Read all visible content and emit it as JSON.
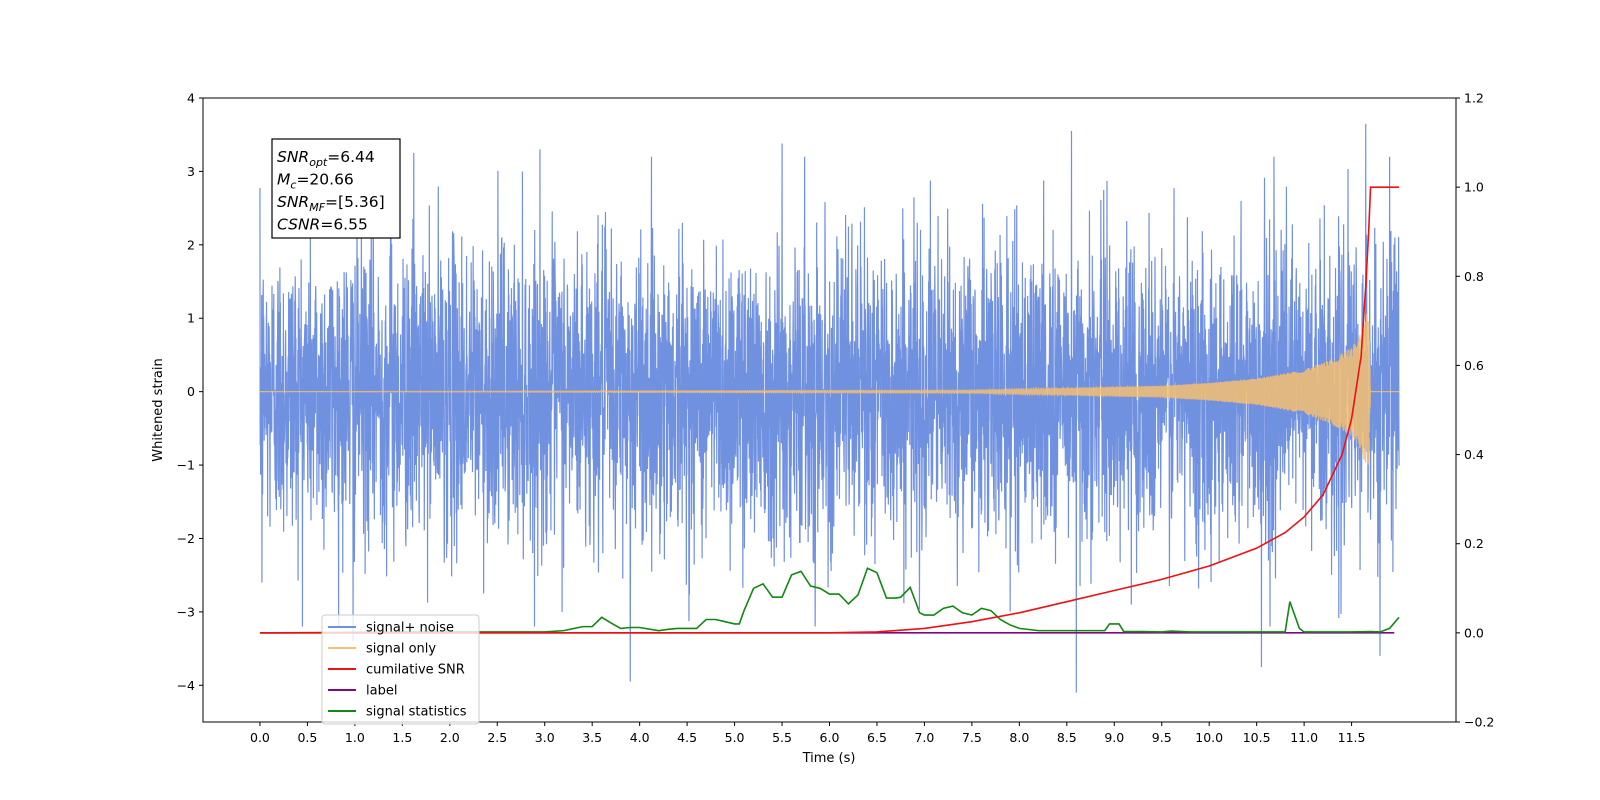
{
  "chart_data": {
    "type": "line",
    "xlabel": "Time (s)",
    "ylabel": "Whitened strain",
    "xlim": [
      -0.6,
      12.6
    ],
    "ylim": [
      -4.5,
      4.0
    ],
    "y2lim": [
      -0.2,
      1.2
    ],
    "x_ticks": [
      0.0,
      0.5,
      1.0,
      1.5,
      2.0,
      2.5,
      3.0,
      3.5,
      4.0,
      4.5,
      5.0,
      5.5,
      6.0,
      6.5,
      7.0,
      7.5,
      8.0,
      8.5,
      9.0,
      9.5,
      10.0,
      10.5,
      11.0,
      11.5
    ],
    "x_tick_labels": [
      "0.0",
      "0.5",
      "1.0",
      "1.5",
      "2.0",
      "2.5",
      "3.0",
      "3.5",
      "4.0",
      "4.5",
      "5.0",
      "5.5",
      "6.0",
      "6.5",
      "7.0",
      "7.5",
      "8.0",
      "8.5",
      "9.0",
      "9.5",
      "10.0",
      "10.5",
      "11.0",
      "11.5"
    ],
    "y_ticks": [
      -4,
      -3,
      -2,
      -1,
      0,
      1,
      2,
      3,
      4
    ],
    "y_tick_labels": [
      "−4",
      "−3",
      "−2",
      "−1",
      "0",
      "1",
      "2",
      "3",
      "4"
    ],
    "y2_ticks": [
      -0.2,
      0.0,
      0.2,
      0.4,
      0.6,
      0.8,
      1.0,
      1.2
    ],
    "y2_tick_labels": [
      "−0.2",
      "0.0",
      "0.2",
      "0.4",
      "0.6",
      "0.8",
      "1.0",
      "1.2"
    ],
    "grid": false,
    "legend_position": "bottom-left",
    "annotation_box": {
      "position": "top-left",
      "lines": [
        {
          "sym": "SNR",
          "sub": "opt",
          "value": "=6.44"
        },
        {
          "sym": "M",
          "sub": "c",
          "value": "=20.66"
        },
        {
          "sym": "SNR",
          "sub": "MF",
          "value": "=[5.36]"
        },
        {
          "sym": "CSNR",
          "sub": "",
          "value": "=6.55"
        }
      ]
    },
    "series": [
      {
        "name": "signal+ noise",
        "color": "#7090e0",
        "axis": "left",
        "description": "whitened noise plus signal, approx. unit-variance, x from 0.0 to 12.0 s",
        "x_range": [
          0.0,
          12.0
        ],
        "std": 1.0,
        "extremes": [
          {
            "x": 0.02,
            "y": 2.87
          },
          {
            "x": 0.02,
            "y": -2.6
          },
          {
            "x": 0.98,
            "y": -3.4
          },
          {
            "x": 1.38,
            "y": 3.0
          },
          {
            "x": 1.62,
            "y": 3.25
          },
          {
            "x": 2.95,
            "y": 3.3
          },
          {
            "x": 3.9,
            "y": -3.95
          },
          {
            "x": 5.5,
            "y": 3.38
          },
          {
            "x": 8.55,
            "y": 3.55
          },
          {
            "x": 8.6,
            "y": -4.1
          },
          {
            "x": 10.55,
            "y": -3.75
          },
          {
            "x": 11.65,
            "y": 3.65
          },
          {
            "x": 11.8,
            "y": -3.6
          },
          {
            "x": 11.9,
            "y": 3.2
          }
        ]
      },
      {
        "name": "signal only",
        "color": "#f5c070",
        "axis": "left",
        "description": "chirp signal, amplitude grows toward merger",
        "envelope": [
          {
            "x": 0.0,
            "amp": 0.0
          },
          {
            "x": 7.5,
            "amp": 0.02
          },
          {
            "x": 8.5,
            "amp": 0.05
          },
          {
            "x": 9.5,
            "amp": 0.08
          },
          {
            "x": 10.0,
            "amp": 0.12
          },
          {
            "x": 10.5,
            "amp": 0.18
          },
          {
            "x": 11.0,
            "amp": 0.3
          },
          {
            "x": 11.3,
            "amp": 0.45
          },
          {
            "x": 11.5,
            "amp": 0.6
          },
          {
            "x": 11.6,
            "amp": 0.8
          },
          {
            "x": 11.68,
            "amp": 1.15
          },
          {
            "x": 11.7,
            "amp": 0.0
          },
          {
            "x": 12.0,
            "amp": 0.0
          }
        ]
      },
      {
        "name": "cumilative SNR",
        "color": "#ee1111",
        "axis": "right",
        "x": [
          0.0,
          6.0,
          6.5,
          7.0,
          7.5,
          8.0,
          8.5,
          9.0,
          9.5,
          10.0,
          10.5,
          10.8,
          11.0,
          11.2,
          11.4,
          11.5,
          11.6,
          11.65,
          11.68,
          11.7,
          12.0
        ],
        "y": [
          0.0,
          0.0,
          0.002,
          0.01,
          0.025,
          0.045,
          0.07,
          0.095,
          0.12,
          0.15,
          0.19,
          0.225,
          0.26,
          0.31,
          0.4,
          0.48,
          0.62,
          0.78,
          0.9,
          1.0,
          1.0
        ]
      },
      {
        "name": "label",
        "color": "#7f0a7f",
        "axis": "right",
        "x": [
          0.0,
          11.95
        ],
        "y": [
          0.0,
          0.0
        ]
      },
      {
        "name": "signal statistics",
        "color": "#118811",
        "axis": "right",
        "x": [
          0.0,
          0.2,
          1.5,
          2.0,
          2.5,
          3.0,
          3.2,
          3.4,
          3.5,
          3.6,
          3.7,
          3.8,
          3.9,
          4.0,
          4.2,
          4.3,
          4.4,
          4.6,
          4.7,
          4.8,
          4.9,
          5.0,
          5.05,
          5.1,
          5.2,
          5.3,
          5.4,
          5.5,
          5.6,
          5.7,
          5.8,
          5.9,
          6.0,
          6.1,
          6.2,
          6.3,
          6.4,
          6.5,
          6.6,
          6.7,
          6.75,
          6.85,
          6.95,
          7.0,
          7.1,
          7.2,
          7.3,
          7.4,
          7.5,
          7.6,
          7.7,
          7.8,
          7.9,
          8.0,
          8.2,
          8.5,
          8.7,
          8.9,
          8.95,
          9.0,
          9.05,
          9.1,
          9.2,
          9.3,
          9.5,
          9.6,
          9.8,
          10.0,
          10.5,
          10.8,
          10.85,
          10.9,
          10.95,
          11.0,
          11.5,
          11.7,
          11.8,
          11.9,
          12.0
        ],
        "y": [
          0.0,
          0.0,
          0.002,
          0.002,
          0.002,
          0.002,
          0.005,
          0.014,
          0.014,
          0.035,
          0.022,
          0.01,
          0.012,
          0.012,
          0.005,
          0.008,
          0.01,
          0.01,
          0.03,
          0.03,
          0.025,
          0.02,
          0.02,
          0.05,
          0.1,
          0.11,
          0.08,
          0.08,
          0.13,
          0.138,
          0.105,
          0.1,
          0.087,
          0.087,
          0.065,
          0.085,
          0.145,
          0.135,
          0.078,
          0.078,
          0.08,
          0.102,
          0.045,
          0.04,
          0.04,
          0.055,
          0.06,
          0.045,
          0.04,
          0.055,
          0.05,
          0.03,
          0.018,
          0.01,
          0.005,
          0.005,
          0.005,
          0.005,
          0.02,
          0.02,
          0.02,
          0.003,
          0.003,
          0.003,
          0.002,
          0.004,
          0.002,
          0.002,
          0.002,
          0.002,
          0.07,
          0.04,
          0.01,
          0.002,
          0.002,
          0.003,
          0.002,
          0.01,
          0.035
        ]
      }
    ],
    "legend": [
      {
        "label": "signal+ noise",
        "color": "#7090e0"
      },
      {
        "label": "signal only",
        "color": "#f5c070"
      },
      {
        "label": "cumilative SNR",
        "color": "#ee1111"
      },
      {
        "label": "label",
        "color": "#7f0a7f"
      },
      {
        "label": "signal statistics",
        "color": "#118811"
      }
    ]
  }
}
